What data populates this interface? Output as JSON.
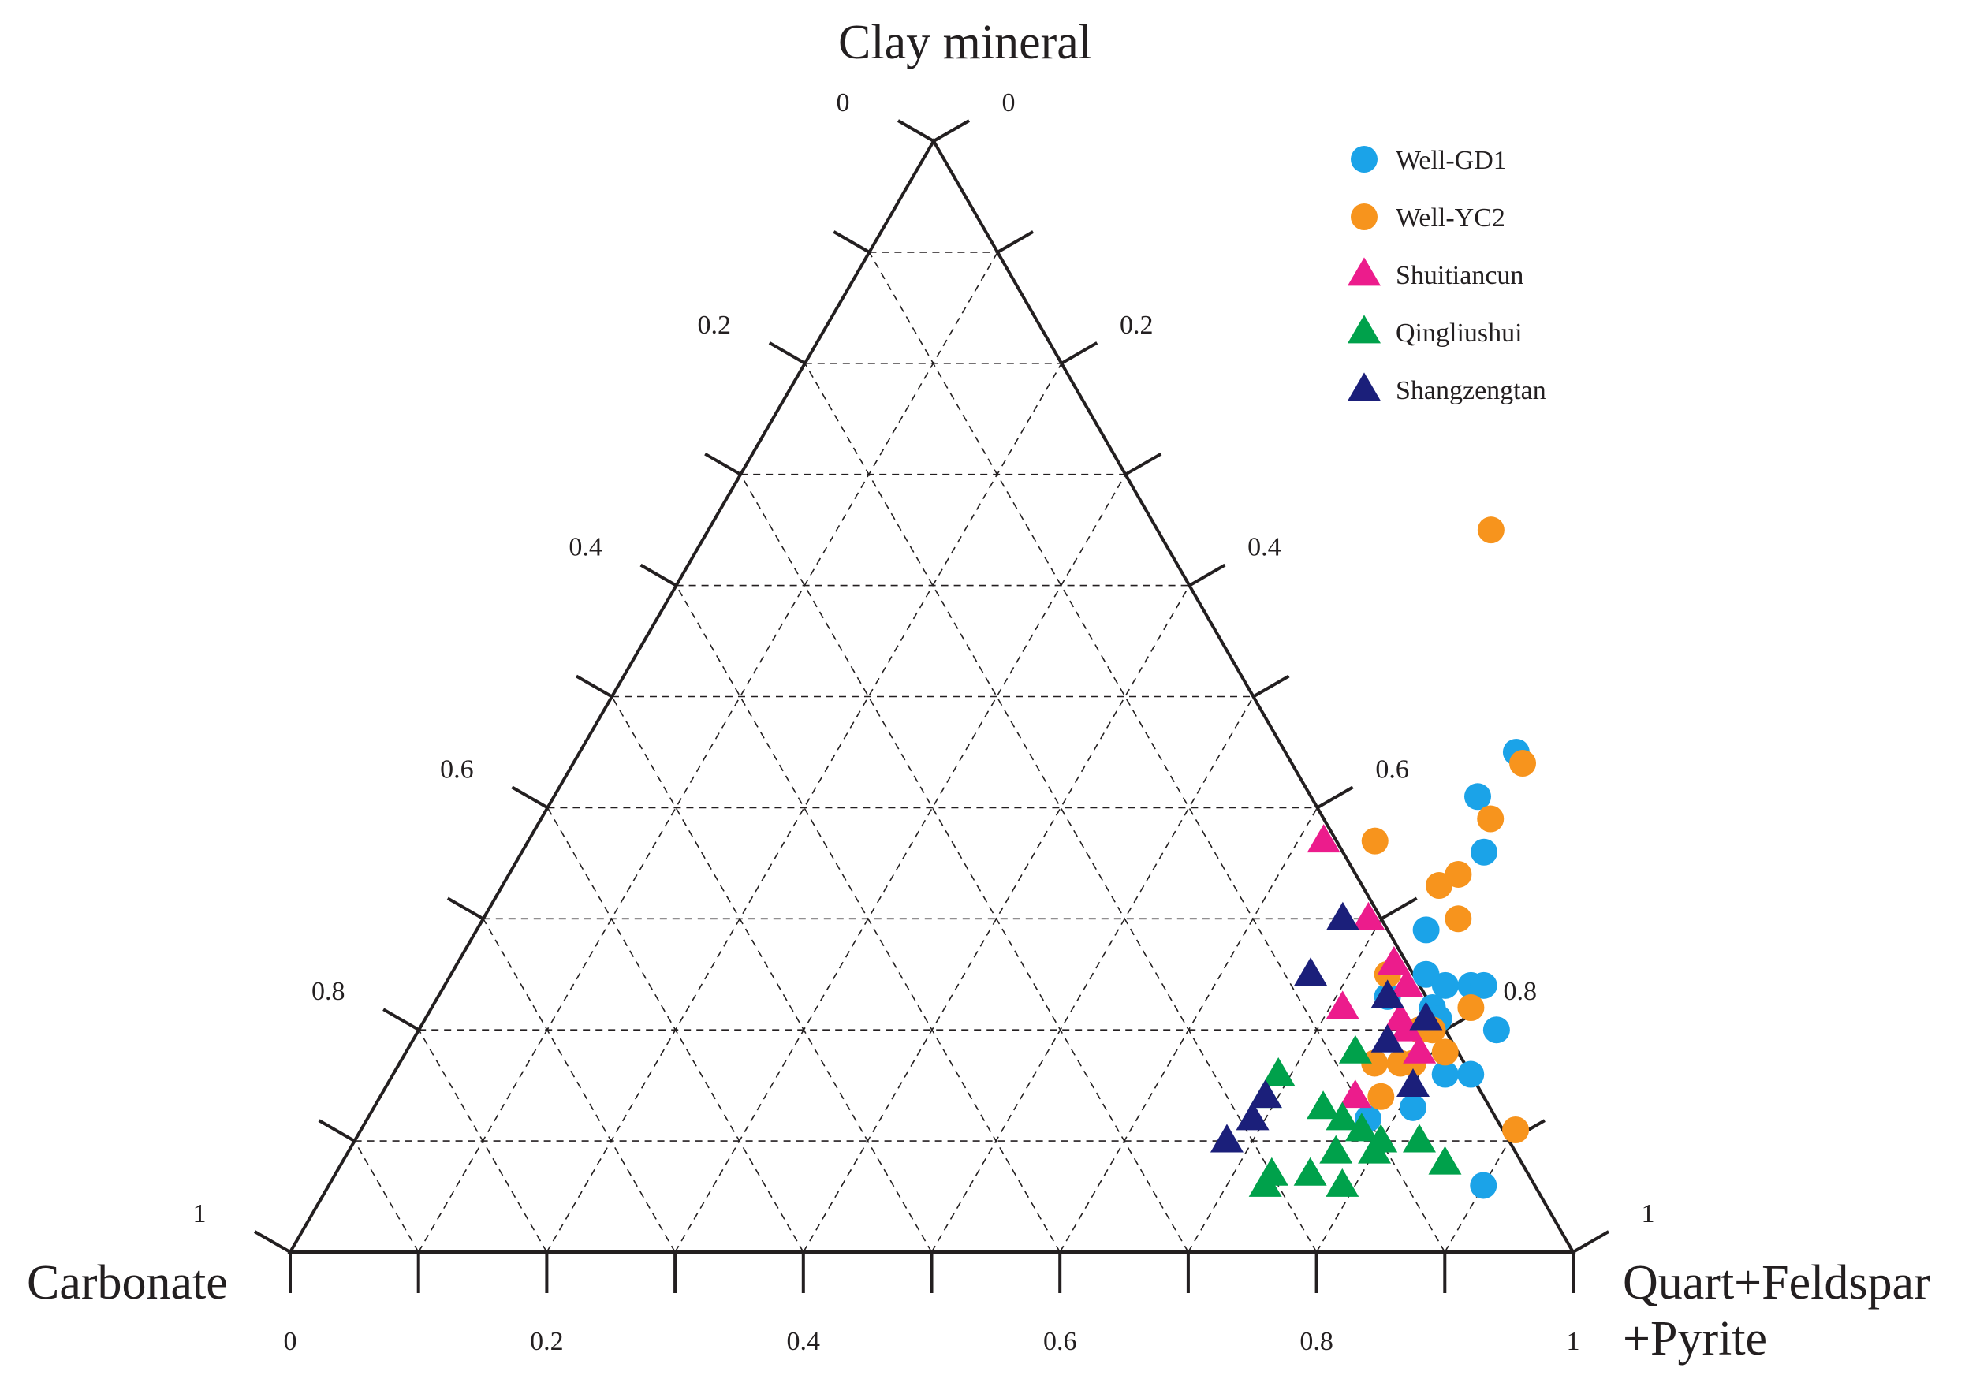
{
  "chart_data": {
    "type": "scatter",
    "subtype": "ternary",
    "axes": {
      "top": "Clay  mineral",
      "left": "Carbonate",
      "right_line1": "Quart+Feldspar",
      "right_line2": "+Pyrite"
    },
    "tick_labels": {
      "base": [
        "0",
        "0.2",
        "0.4",
        "0.6",
        "0.8",
        "1"
      ],
      "left_side": [
        "1",
        "0.8",
        "0.6",
        "0.4",
        "0.2",
        "0"
      ],
      "right_side": [
        "1",
        "0.8",
        "0.6",
        "0.4",
        "0.2",
        "0"
      ]
    },
    "grid": true,
    "legend_position": "top-right",
    "series": [
      {
        "name": "Well-GD1",
        "marker": "circle",
        "color": "#1ba3e8",
        "points": [
          {
            "clay": 0.45,
            "qfp": 0.73
          },
          {
            "clay": 0.41,
            "qfp": 0.72
          },
          {
            "clay": 0.36,
            "qfp": 0.75
          },
          {
            "clay": 0.29,
            "qfp": 0.74
          },
          {
            "clay": 0.25,
            "qfp": 0.76
          },
          {
            "clay": 0.23,
            "qfp": 0.74
          },
          {
            "clay": 0.24,
            "qfp": 0.78
          },
          {
            "clay": 0.24,
            "qfp": 0.8
          },
          {
            "clay": 0.24,
            "qfp": 0.81
          },
          {
            "clay": 0.22,
            "qfp": 0.78
          },
          {
            "clay": 0.21,
            "qfp": 0.79
          },
          {
            "clay": 0.2,
            "qfp": 0.84
          },
          {
            "clay": 0.16,
            "qfp": 0.82
          },
          {
            "clay": 0.16,
            "qfp": 0.84
          },
          {
            "clay": 0.13,
            "qfp": 0.81
          },
          {
            "clay": 0.12,
            "qfp": 0.78
          },
          {
            "clay": 0.06,
            "qfp": 0.9
          }
        ]
      },
      {
        "name": "Well-YC2",
        "marker": "circle",
        "color": "#f7941d",
        "points": [
          {
            "clay": 0.65,
            "qfp": 0.61
          },
          {
            "clay": 0.44,
            "qfp": 0.74
          },
          {
            "clay": 0.39,
            "qfp": 0.74
          },
          {
            "clay": 0.37,
            "qfp": 0.66
          },
          {
            "clay": 0.34,
            "qfp": 0.74
          },
          {
            "clay": 0.33,
            "qfp": 0.73
          },
          {
            "clay": 0.3,
            "qfp": 0.76
          },
          {
            "clay": 0.25,
            "qfp": 0.73
          },
          {
            "clay": 0.22,
            "qfp": 0.81
          },
          {
            "clay": 0.2,
            "qfp": 0.78
          },
          {
            "clay": 0.2,
            "qfp": 0.79
          },
          {
            "clay": 0.17,
            "qfp": 0.79
          },
          {
            "clay": 0.18,
            "qfp": 0.81
          },
          {
            "clay": 0.17,
            "qfp": 0.76
          },
          {
            "clay": 0.17,
            "qfp": 0.78
          },
          {
            "clay": 0.14,
            "qfp": 0.78
          },
          {
            "clay": 0.11,
            "qfp": 0.9
          }
        ]
      },
      {
        "name": "Shuitiancun",
        "marker": "triangle",
        "color": "#ec1c8c",
        "points": [
          {
            "clay": 0.37,
            "qfp": 0.62
          },
          {
            "clay": 0.3,
            "qfp": 0.69
          },
          {
            "clay": 0.26,
            "qfp": 0.73
          },
          {
            "clay": 0.24,
            "qfp": 0.75
          },
          {
            "clay": 0.22,
            "qfp": 0.71
          },
          {
            "clay": 0.21,
            "qfp": 0.76
          },
          {
            "clay": 0.2,
            "qfp": 0.77
          },
          {
            "clay": 0.18,
            "qfp": 0.79
          },
          {
            "clay": 0.14,
            "qfp": 0.76
          }
        ]
      },
      {
        "name": "Qingliushui",
        "marker": "triangle",
        "color": "#00a14b",
        "points": [
          {
            "clay": 0.18,
            "qfp": 0.74
          },
          {
            "clay": 0.16,
            "qfp": 0.69
          },
          {
            "clay": 0.14,
            "qfp": 0.69
          },
          {
            "clay": 0.13,
            "qfp": 0.74
          },
          {
            "clay": 0.12,
            "qfp": 0.76
          },
          {
            "clay": 0.11,
            "qfp": 0.78
          },
          {
            "clay": 0.1,
            "qfp": 0.8
          },
          {
            "clay": 0.1,
            "qfp": 0.83
          },
          {
            "clay": 0.09,
            "qfp": 0.8
          },
          {
            "clay": 0.09,
            "qfp": 0.77
          },
          {
            "clay": 0.08,
            "qfp": 0.86
          },
          {
            "clay": 0.07,
            "qfp": 0.76
          },
          {
            "clay": 0.07,
            "qfp": 0.73
          },
          {
            "clay": 0.06,
            "qfp": 0.73
          },
          {
            "clay": 0.06,
            "qfp": 0.79
          }
        ]
      },
      {
        "name": "Shangzengtan",
        "marker": "triangle",
        "color": "#1b1f7a",
        "points": [
          {
            "clay": 0.3,
            "qfp": 0.67
          },
          {
            "clay": 0.25,
            "qfp": 0.67
          },
          {
            "clay": 0.23,
            "qfp": 0.74
          },
          {
            "clay": 0.21,
            "qfp": 0.78
          },
          {
            "clay": 0.19,
            "qfp": 0.76
          },
          {
            "clay": 0.15,
            "qfp": 0.8
          },
          {
            "clay": 0.14,
            "qfp": 0.69
          },
          {
            "clay": 0.12,
            "qfp": 0.69
          },
          {
            "clay": 0.1,
            "qfp": 0.68
          }
        ]
      }
    ]
  }
}
